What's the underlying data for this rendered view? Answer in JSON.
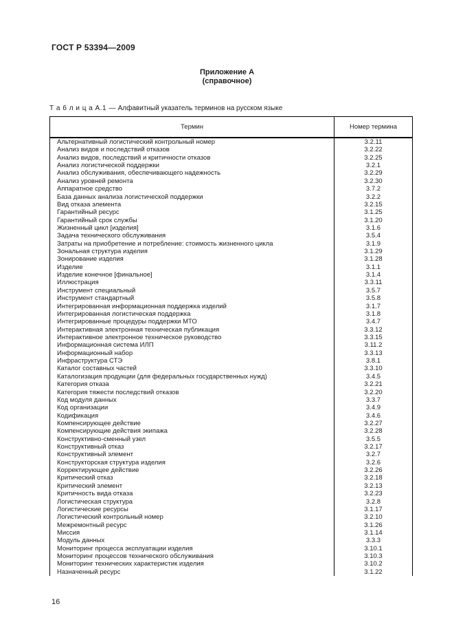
{
  "page": {
    "doc_header": "ГОСТ Р 53394—2009",
    "appendix_title": "Приложение А",
    "appendix_subtitle": "(справочное)",
    "caption_label": "Т а б л и ц а   А.1 —",
    "caption_text": "Алфавитный указатель терминов на русском языке",
    "page_number": "16"
  },
  "table": {
    "columns": [
      "Термин",
      "Номер термина"
    ],
    "rows": [
      [
        "Альтернативный логистический контрольный номер",
        "3.2.11"
      ],
      [
        "Анализ видов и последствий отказов",
        "3.2.22"
      ],
      [
        "Анализ видов, последствий и критичности отказов",
        "3.2.25"
      ],
      [
        "Анализ логистической поддержки",
        "3.2.1"
      ],
      [
        "Анализ обслуживания, обеспечивающего надежность",
        "3.2.29"
      ],
      [
        "Анализ уровней ремонта",
        "3.2.30"
      ],
      [
        "Аппаратное средство",
        "3.7.2"
      ],
      [
        "База данных анализа логистической поддержки",
        "3.2.2"
      ],
      [
        "Вид отказа элемента",
        "3.2.15"
      ],
      [
        "Гарантийный ресурс",
        "3.1.25"
      ],
      [
        "Гарантийный срок службы",
        "3.1.20"
      ],
      [
        "Жизненный цикл [изделия]",
        "3.1.6"
      ],
      [
        "Задача технического обслуживания",
        "3.5.4"
      ],
      [
        "Затраты на приобретение и потребление: стоимость жизненного цикла",
        "3.1.9"
      ],
      [
        "Зональная структура изделия",
        "3.1.29"
      ],
      [
        "Зонирование изделия",
        "3.1.28"
      ],
      [
        "Изделие",
        "3.1.1"
      ],
      [
        "Изделие конечное [финальное]",
        "3.1.4"
      ],
      [
        "Иллюстрация",
        "3.3.11"
      ],
      [
        "Инструмент специальный",
        "3.5.7"
      ],
      [
        "Инструмент стандартный",
        "3.5.8"
      ],
      [
        "Интегрированная информационная поддержка изделий",
        "3.1.7"
      ],
      [
        "Интегрированная логистическая поддержка",
        "3.1.8"
      ],
      [
        "Интегрированные процедуры поддержки МТО",
        "3.4.7"
      ],
      [
        "Интерактивная электронная техническая публикация",
        "3.3.12"
      ],
      [
        "Интерактивное электронное техническое руководство",
        "3.3.15"
      ],
      [
        "Информационная система ИЛП",
        "3.11.2"
      ],
      [
        "Информационный набор",
        "3.3.13"
      ],
      [
        "Инфраструктура СТЭ",
        "3.8.1"
      ],
      [
        "Каталог составных частей",
        "3.3.10"
      ],
      [
        "Каталогизация продукции (для федеральных государственных нужд)",
        "3.4.5"
      ],
      [
        "Категория отказа",
        "3.2.21"
      ],
      [
        "Категория тяжести последствий отказов",
        "3.2.20"
      ],
      [
        "Код модуля данных",
        "3.3.7"
      ],
      [
        "Код организации",
        "3.4.9"
      ],
      [
        "Кодификация",
        "3.4.6"
      ],
      [
        "Компенсирующее действие",
        "3.2.27"
      ],
      [
        "Компенсирующие действия экипажа",
        "3.2.28"
      ],
      [
        "Конструктивно-сменный узел",
        "3.5.5"
      ],
      [
        "Конструктивный отказ",
        "3.2.17"
      ],
      [
        "Конструктивный элемент",
        "3.2.7"
      ],
      [
        "Конструкторская структура изделия",
        "3.2.6"
      ],
      [
        "Корректирующее действие",
        "3.2.26"
      ],
      [
        "Критический отказ",
        "3.2.18"
      ],
      [
        "Критический элемент",
        "3.2.13"
      ],
      [
        "Критичность вида отказа",
        "3.2.23"
      ],
      [
        "Логистическая структура",
        "3.2.8"
      ],
      [
        "Логистические ресурсы",
        "3.1.17"
      ],
      [
        "Логистический контрольный номер",
        "3.2.10"
      ],
      [
        "Межремонтный ресурс",
        "3.1.26"
      ],
      [
        "Миссия",
        "3.1.14"
      ],
      [
        "Модуль данных",
        "3.3.3"
      ],
      [
        "Мониторинг процесса эксплуатации изделия",
        "3.10.1"
      ],
      [
        "Мониторинг процессов технического обслуживания",
        "3.10.3"
      ],
      [
        "Мониторинг технических характеристик изделия",
        "3.10.2"
      ],
      [
        "Назначенный ресурс",
        "3.1.22"
      ]
    ]
  }
}
